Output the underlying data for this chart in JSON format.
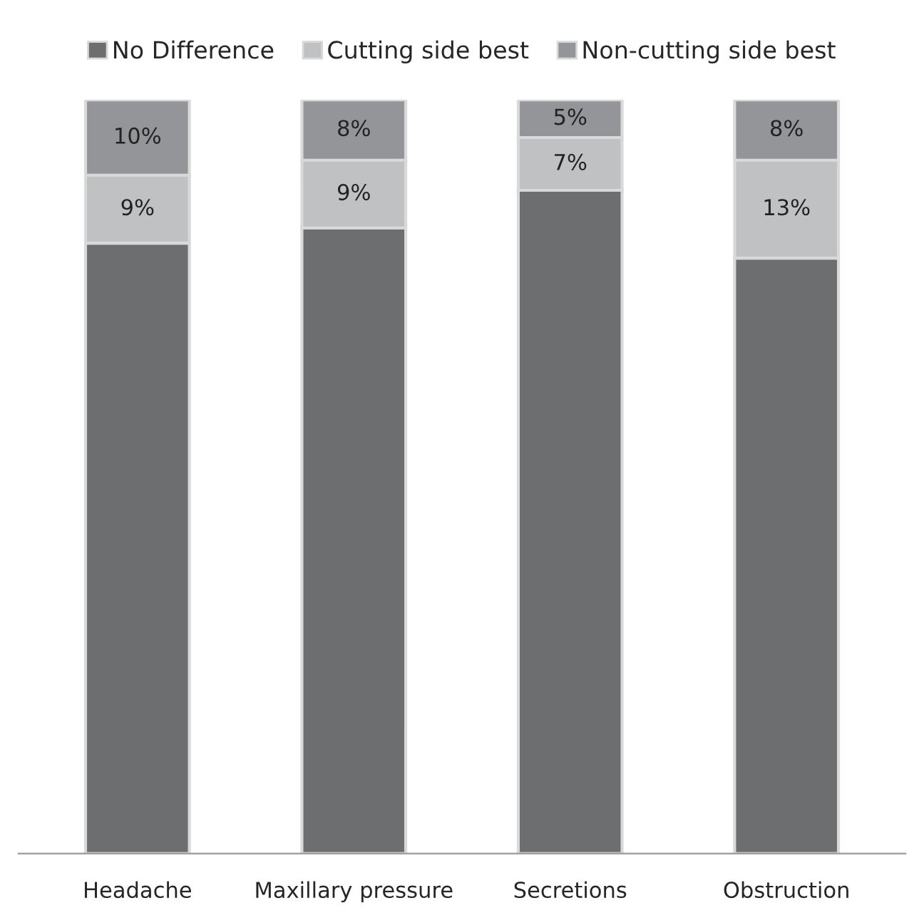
{
  "chart_data": {
    "type": "bar",
    "stacked": true,
    "categories": [
      "Headache",
      "Maxillary pressure",
      "Secretions",
      "Obstruction"
    ],
    "series": [
      {
        "name": "No Difference",
        "color": "#6d6e70",
        "values": [
          81,
          83,
          88,
          79
        ],
        "value_labels": [
          null,
          null,
          null,
          null
        ]
      },
      {
        "name": "Cutting side best",
        "color": "#c0c1c2",
        "values": [
          9,
          9,
          7,
          13
        ],
        "value_labels": [
          "9%",
          "9%",
          "7%",
          "13%"
        ]
      },
      {
        "name": "Non-cutting side best",
        "color": "#939598",
        "values": [
          10,
          8,
          5,
          8
        ],
        "value_labels": [
          "10%",
          "8%",
          "5%",
          "8%"
        ]
      }
    ],
    "ylim": [
      0,
      100
    ],
    "legend": "top"
  }
}
